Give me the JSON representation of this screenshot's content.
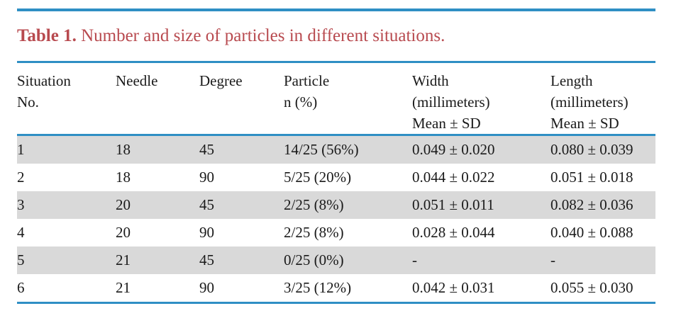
{
  "table": {
    "caption_label": "Table 1.",
    "caption_text": "Number and size of particles in different situations.",
    "headers": [
      [
        "Situation",
        "No.",
        ""
      ],
      [
        "Needle",
        "",
        ""
      ],
      [
        "Degree",
        "",
        ""
      ],
      [
        "Particle",
        "n (%)",
        ""
      ],
      [
        "Width",
        "(millimeters)",
        "Mean ± SD"
      ],
      [
        "Length",
        "(millimeters)",
        "Mean ± SD"
      ]
    ],
    "rows": [
      [
        "1",
        "18",
        "45",
        "14/25 (56%)",
        "0.049 ± 0.020",
        "0.080 ± 0.039"
      ],
      [
        "2",
        "18",
        "90",
        "5/25 (20%)",
        "0.044 ± 0.022",
        "0.051 ± 0.018"
      ],
      [
        "3",
        "20",
        "45",
        "2/25 (8%)",
        "0.051 ± 0.011",
        "0.082 ± 0.036"
      ],
      [
        "4",
        "20",
        "90",
        "2/25 (8%)",
        "0.028 ± 0.044",
        "0.040 ± 0.088"
      ],
      [
        "5",
        "21",
        "45",
        "0/25 (0%)",
        "-",
        "-"
      ],
      [
        "6",
        "21",
        "90",
        "3/25 (12%)",
        "0.042 ± 0.031",
        "0.055 ± 0.030"
      ]
    ]
  },
  "colors": {
    "rule": "#2f8fc4",
    "caption": "#b84a4f",
    "stripe": "#d9d9d9"
  }
}
